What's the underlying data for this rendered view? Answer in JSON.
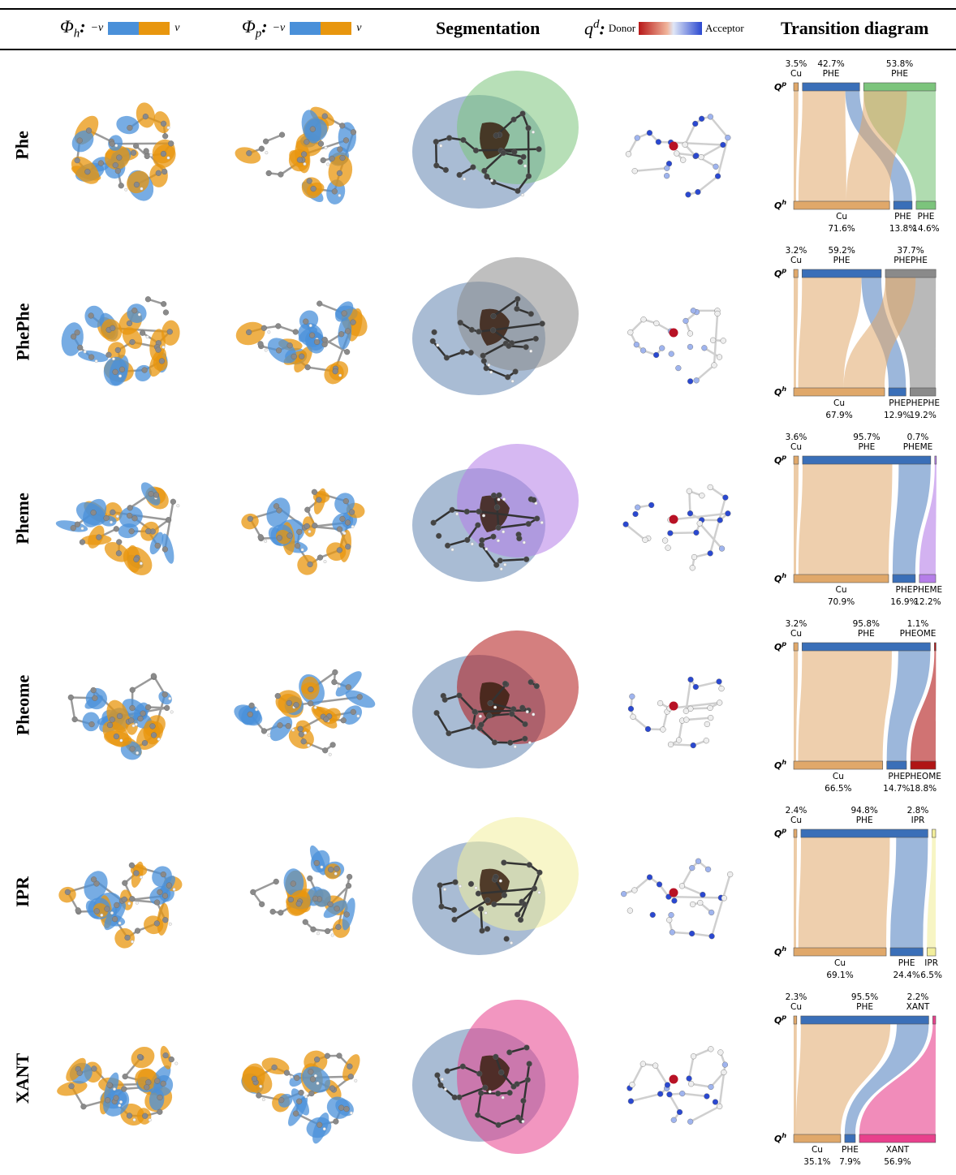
{
  "header": {
    "col1": {
      "symbol": "Φ",
      "sub": "h",
      "neg": "−v",
      "pos": "v"
    },
    "col2": {
      "symbol": "Φ",
      "sub": "p",
      "neg": "−v",
      "pos": "v"
    },
    "col3": "Segmentation",
    "col4": {
      "symbol": "q",
      "sup": "d",
      "donor": "Donor",
      "acceptor": "Acceptor"
    },
    "col5": "Transition diagram",
    "colon": ":"
  },
  "colors": {
    "neg": "#4a90d9",
    "pos": "#e8960e",
    "cu": "#e0a86a",
    "phe": "#3a6fb8",
    "donor": "#c02020",
    "acceptor": "#2040c0"
  },
  "axis_labels": {
    "top": "Q",
    "top_sup": "p",
    "bottom": "Q",
    "bottom_sup": "h"
  },
  "rows": [
    {
      "label": "Phe",
      "ligand_color": "#7cc47c",
      "top": [
        {
          "pct": "3.5%",
          "name": "Cu"
        },
        {
          "pct": "42.7%",
          "name": "PHE"
        },
        {
          "pct": "53.8%",
          "name": "PHE"
        }
      ],
      "bottom": [
        {
          "pct": "71.6%",
          "name": "Cu"
        },
        {
          "pct": "13.8%",
          "name": "PHE"
        },
        {
          "pct": "14.6%",
          "name": "PHE"
        }
      ]
    },
    {
      "label": "PhePhe",
      "ligand_color": "#8a8a8a",
      "top": [
        {
          "pct": "3.2%",
          "name": "Cu"
        },
        {
          "pct": "59.2%",
          "name": "PHE"
        },
        {
          "pct": "37.7%",
          "name": "PHEPHE"
        }
      ],
      "bottom": [
        {
          "pct": "67.9%",
          "name": "Cu"
        },
        {
          "pct": "12.9%",
          "name": "PHE"
        },
        {
          "pct": "19.2%",
          "name": "PHEPHE"
        }
      ]
    },
    {
      "label": "Pheme",
      "ligand_color": "#b57ee8",
      "top": [
        {
          "pct": "3.6%",
          "name": "Cu"
        },
        {
          "pct": "95.7%",
          "name": "PHE"
        },
        {
          "pct": "0.7%",
          "name": "PHEME"
        }
      ],
      "bottom": [
        {
          "pct": "70.9%",
          "name": "Cu"
        },
        {
          "pct": "16.9%",
          "name": "PHE"
        },
        {
          "pct": "12.2%",
          "name": "PHEME"
        }
      ]
    },
    {
      "label": "Pheome",
      "ligand_color": "#b01515",
      "top": [
        {
          "pct": "3.2%",
          "name": "Cu"
        },
        {
          "pct": "95.8%",
          "name": "PHE"
        },
        {
          "pct": "1.1%",
          "name": "PHEOME"
        }
      ],
      "bottom": [
        {
          "pct": "66.5%",
          "name": "Cu"
        },
        {
          "pct": "14.7%",
          "name": "PHE"
        },
        {
          "pct": "18.8%",
          "name": "PHEOME"
        }
      ]
    },
    {
      "label": "IPR",
      "ligand_color": "#f2ee9c",
      "top": [
        {
          "pct": "2.4%",
          "name": "Cu"
        },
        {
          "pct": "94.8%",
          "name": "PHE"
        },
        {
          "pct": "2.8%",
          "name": "IPR"
        }
      ],
      "bottom": [
        {
          "pct": "69.1%",
          "name": "Cu"
        },
        {
          "pct": "24.4%",
          "name": "PHE"
        },
        {
          "pct": "6.5%",
          "name": "IPR"
        }
      ]
    },
    {
      "label": "XANT",
      "ligand_color": "#e8408c",
      "top": [
        {
          "pct": "2.3%",
          "name": "Cu"
        },
        {
          "pct": "95.5%",
          "name": "PHE"
        },
        {
          "pct": "2.2%",
          "name": "XANT"
        }
      ],
      "bottom": [
        {
          "pct": "35.1%",
          "name": "Cu"
        },
        {
          "pct": "7.9%",
          "name": "PHE"
        },
        {
          "pct": "56.9%",
          "name": "XANT"
        }
      ]
    }
  ]
}
